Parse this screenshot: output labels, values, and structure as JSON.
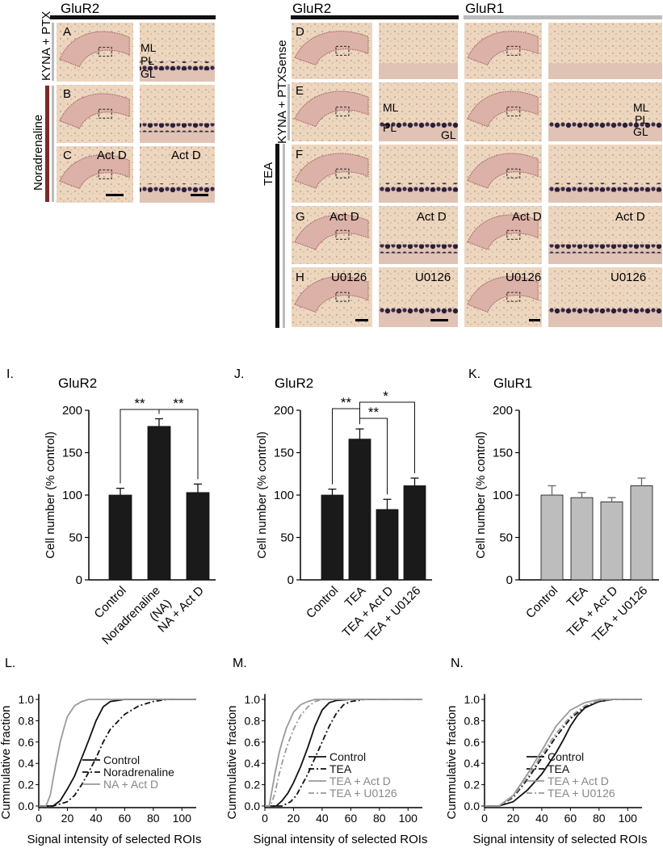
{
  "colors": {
    "black_bar": "#1a1a1a",
    "gray_bar": "#bdbdbd",
    "gray_line": "#9a9a9a",
    "noradrenaline_bracket": "#7a2a2a",
    "tissue_bg": "#efd9b8",
    "tissue_pink": "#dcb1a8",
    "cells_dark": "#2a1f3a"
  },
  "micrographs": {
    "left_header": "GluR2",
    "mid_header": "GluR2",
    "right_header": "GluR1",
    "group_kyna_left": "KYNA + PTX",
    "group_noradrenaline": "Noradrenaline",
    "group_sense": "Sense",
    "group_kyna_right": "KYNA + PTX",
    "group_tea": "TEA",
    "panel_letters": [
      "A",
      "B",
      "C",
      "D",
      "E",
      "F",
      "G",
      "H"
    ],
    "layer_labels": {
      "ml": "ML",
      "pl": "PL",
      "gl": "GL"
    },
    "act_d": "Act D",
    "u0126": "U0126"
  },
  "chart_data": [
    {
      "type": "bar",
      "panel": "I.",
      "title": "GluR2",
      "ylabel": "Cell number (% control)",
      "ylim": [
        0,
        200
      ],
      "yticks": [
        0,
        50,
        100,
        150,
        200
      ],
      "categories": [
        "Control",
        "Noradrenaline (NA)",
        "NA + Act D"
      ],
      "values": [
        100,
        181,
        103
      ],
      "errors": [
        8,
        9,
        10
      ],
      "bar_color": "black",
      "significance": [
        {
          "from": 0,
          "to": 1,
          "label": "**"
        },
        {
          "from": 1,
          "to": 2,
          "label": "**"
        }
      ]
    },
    {
      "type": "bar",
      "panel": "J.",
      "title": "GluR2",
      "ylabel": "Cell number (% control)",
      "ylim": [
        0,
        200
      ],
      "yticks": [
        0,
        50,
        100,
        150,
        200
      ],
      "categories": [
        "Control",
        "TEA",
        "TEA + Act D",
        "TEA + U0126"
      ],
      "values": [
        100,
        166,
        83,
        111
      ],
      "errors": [
        7,
        12,
        12,
        9
      ],
      "bar_color": "black",
      "significance": [
        {
          "from": 0,
          "to": 1,
          "label": "**"
        },
        {
          "from": 1,
          "to": 2,
          "label": "**"
        },
        {
          "from": 1,
          "to": 3,
          "label": "*"
        }
      ]
    },
    {
      "type": "bar",
      "panel": "K.",
      "title": "GluR1",
      "ylabel": "Cell number (% control)",
      "ylim": [
        0,
        200
      ],
      "yticks": [
        0,
        50,
        100,
        150,
        200
      ],
      "categories": [
        "Control",
        "TEA",
        "TEA + Act D",
        "TEA + U0126"
      ],
      "values": [
        100,
        97,
        92,
        111
      ],
      "errors": [
        11,
        6,
        5,
        9
      ],
      "bar_color": "gray"
    },
    {
      "type": "line",
      "panel": "L.",
      "xlabel": "Signal intensity of selected ROIs",
      "ylabel": "Cummulative fraction",
      "xlim": [
        0,
        110
      ],
      "ylim": [
        0,
        1.05
      ],
      "xticks": [
        0,
        20,
        40,
        60,
        80,
        100
      ],
      "yticks": [
        0.0,
        0.2,
        0.4,
        0.6,
        0.8,
        1.0
      ],
      "series": [
        {
          "name": "Control",
          "style": "solid-black",
          "x": [
            10,
            15,
            20,
            25,
            30,
            35,
            40,
            45,
            50,
            55,
            60,
            70
          ],
          "y": [
            0.0,
            0.05,
            0.16,
            0.28,
            0.45,
            0.62,
            0.8,
            0.93,
            0.98,
            0.99,
            1.0,
            1.0
          ]
        },
        {
          "name": "Noradrenaline",
          "style": "dashdot-black",
          "x": [
            10,
            20,
            25,
            30,
            35,
            40,
            45,
            50,
            60,
            70,
            80,
            90,
            100
          ],
          "y": [
            0.0,
            0.04,
            0.1,
            0.2,
            0.32,
            0.45,
            0.6,
            0.72,
            0.86,
            0.94,
            0.98,
            1.0,
            1.0
          ]
        },
        {
          "name": "NA + Act D",
          "style": "solid-gray",
          "x": [
            5,
            8,
            10,
            12,
            15,
            18,
            20,
            25,
            30,
            35,
            40,
            50
          ],
          "y": [
            0.0,
            0.1,
            0.25,
            0.4,
            0.6,
            0.75,
            0.84,
            0.94,
            0.98,
            1.0,
            1.0,
            1.0
          ]
        }
      ]
    },
    {
      "type": "line",
      "panel": "M.",
      "xlabel": "Signal intensity of selected ROIs",
      "ylabel": "Cummulative fraction",
      "xlim": [
        0,
        110
      ],
      "ylim": [
        0,
        1.05
      ],
      "xticks": [
        0,
        20,
        40,
        60,
        80,
        100
      ],
      "yticks": [
        0.0,
        0.2,
        0.4,
        0.6,
        0.8,
        1.0
      ],
      "series": [
        {
          "name": "Control",
          "style": "solid-black",
          "x": [
            8,
            12,
            16,
            20,
            25,
            30,
            35,
            40,
            45,
            50,
            60
          ],
          "y": [
            0.0,
            0.05,
            0.12,
            0.22,
            0.37,
            0.55,
            0.75,
            0.9,
            0.97,
            0.99,
            1.0
          ]
        },
        {
          "name": "TEA",
          "style": "dashdot-black",
          "x": [
            12,
            18,
            22,
            26,
            30,
            35,
            40,
            45,
            50,
            55,
            60,
            70,
            80
          ],
          "y": [
            0.0,
            0.04,
            0.1,
            0.2,
            0.3,
            0.45,
            0.6,
            0.75,
            0.87,
            0.95,
            0.98,
            1.0,
            1.0
          ]
        },
        {
          "name": "TEA + Act D",
          "style": "solid-gray",
          "x": [
            3,
            5,
            7,
            10,
            12,
            15,
            18,
            20,
            25,
            30,
            35,
            40
          ],
          "y": [
            0.0,
            0.15,
            0.3,
            0.5,
            0.6,
            0.73,
            0.82,
            0.88,
            0.95,
            0.98,
            1.0,
            1.0
          ]
        },
        {
          "name": "TEA + U0126",
          "style": "dashdot-gray",
          "x": [
            4,
            7,
            10,
            13,
            16,
            20,
            25,
            30,
            35,
            40,
            50
          ],
          "y": [
            0.0,
            0.12,
            0.3,
            0.45,
            0.58,
            0.72,
            0.85,
            0.93,
            0.98,
            1.0,
            1.0
          ]
        }
      ]
    },
    {
      "type": "line",
      "panel": "N.",
      "xlabel": "Signal intensity of selected ROIs",
      "ylabel": "Cummulative fraction",
      "xlim": [
        0,
        110
      ],
      "ylim": [
        0,
        1.05
      ],
      "xticks": [
        0,
        20,
        40,
        60,
        80,
        100
      ],
      "yticks": [
        0.0,
        0.2,
        0.4,
        0.6,
        0.8,
        1.0
      ],
      "series": [
        {
          "name": "Control",
          "style": "solid-black",
          "x": [
            10,
            20,
            30,
            40,
            45,
            50,
            55,
            60,
            65,
            70,
            80,
            90
          ],
          "y": [
            0.0,
            0.04,
            0.15,
            0.3,
            0.4,
            0.5,
            0.62,
            0.75,
            0.85,
            0.92,
            0.98,
            1.0
          ]
        },
        {
          "name": "TEA",
          "style": "dashdot-black",
          "x": [
            10,
            20,
            30,
            40,
            50,
            60,
            70,
            80,
            90
          ],
          "y": [
            0.0,
            0.08,
            0.25,
            0.45,
            0.65,
            0.82,
            0.93,
            0.98,
            1.0
          ]
        },
        {
          "name": "TEA + Act D",
          "style": "solid-gray",
          "x": [
            10,
            20,
            30,
            40,
            50,
            60,
            70,
            80
          ],
          "y": [
            0.0,
            0.1,
            0.3,
            0.52,
            0.75,
            0.9,
            0.97,
            1.0
          ]
        },
        {
          "name": "TEA + U0126",
          "style": "dashdot-gray",
          "x": [
            10,
            20,
            30,
            40,
            50,
            60,
            70,
            80,
            90
          ],
          "y": [
            0.0,
            0.09,
            0.27,
            0.48,
            0.68,
            0.84,
            0.94,
            0.99,
            1.0
          ]
        }
      ]
    }
  ]
}
